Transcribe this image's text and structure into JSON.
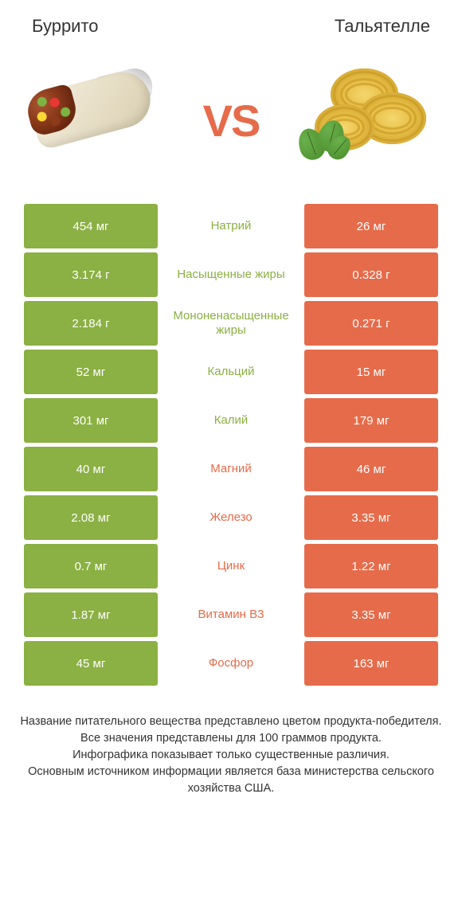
{
  "colors": {
    "left": "#8bb043",
    "right": "#e66b4a",
    "background": "#ffffff",
    "text": "#333333",
    "cell_text": "#ffffff"
  },
  "header": {
    "left_title": "Буррито",
    "right_title": "Тальятелле",
    "vs": "VS"
  },
  "rows": [
    {
      "left": "454 мг",
      "label": "Натрий",
      "right": "26 мг",
      "winner": "left"
    },
    {
      "left": "3.174 г",
      "label": "Насыщенные жиры",
      "right": "0.328 г",
      "winner": "left"
    },
    {
      "left": "2.184 г",
      "label": "Мононенасыщенные жиры",
      "right": "0.271 г",
      "winner": "left"
    },
    {
      "left": "52 мг",
      "label": "Кальций",
      "right": "15 мг",
      "winner": "left"
    },
    {
      "left": "301 мг",
      "label": "Калий",
      "right": "179 мг",
      "winner": "left"
    },
    {
      "left": "40 мг",
      "label": "Магний",
      "right": "46 мг",
      "winner": "right"
    },
    {
      "left": "2.08 мг",
      "label": "Железо",
      "right": "3.35 мг",
      "winner": "right"
    },
    {
      "left": "0.7 мг",
      "label": "Цинк",
      "right": "1.22 мг",
      "winner": "right"
    },
    {
      "left": "1.87 мг",
      "label": "Витамин B3",
      "right": "3.35 мг",
      "winner": "right"
    },
    {
      "left": "45 мг",
      "label": "Фосфор",
      "right": "163 мг",
      "winner": "right"
    }
  ],
  "footnote": "Название питательного вещества представлено цветом продукта-победителя.\nВсе значения представлены для 100 граммов продукта.\nИнфографика показывает только существенные различия.\nОсновным источником информации является база министерства сельского хозяйства США."
}
